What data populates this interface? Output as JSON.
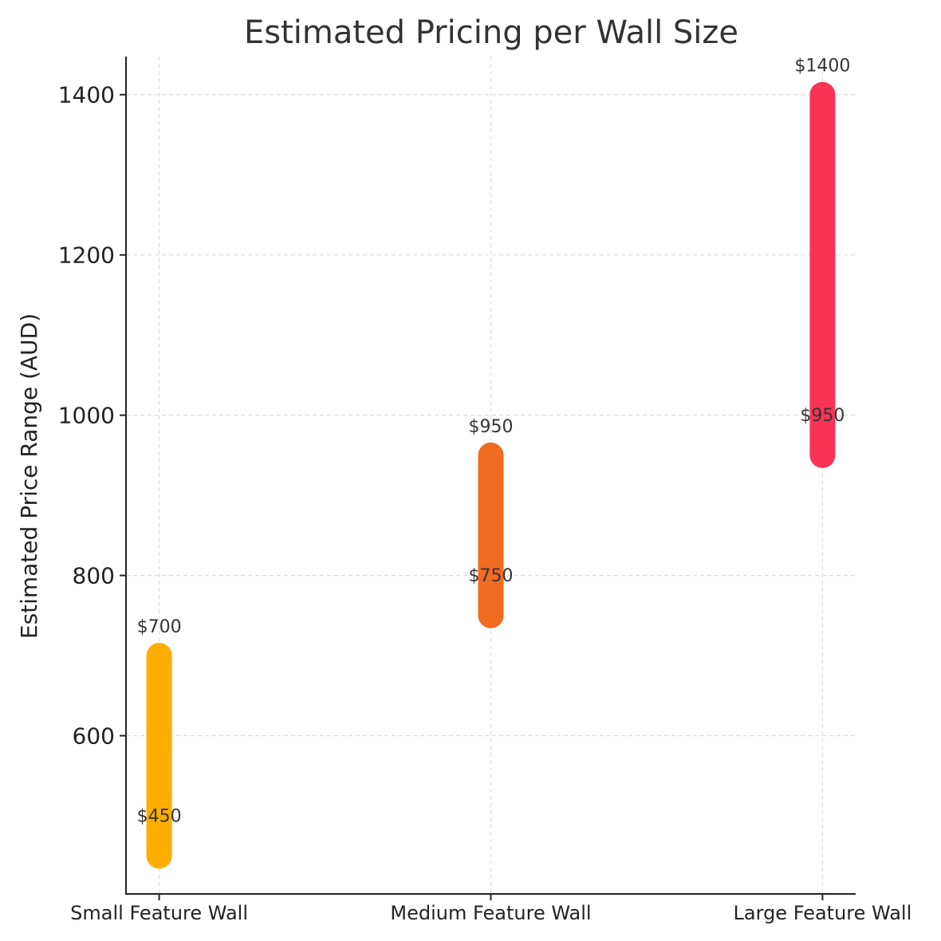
{
  "chart_data": {
    "type": "range-bar",
    "title": "Estimated Pricing per Wall Size",
    "xlabel": "",
    "ylabel": "Estimated Price Range (AUD)",
    "categories": [
      "Small Feature Wall",
      "Medium Feature Wall",
      "Large Feature Wall"
    ],
    "series": [
      {
        "name": "Small Feature Wall",
        "low": 450,
        "high": 700,
        "low_label": "$450",
        "high_label": "$700",
        "color": "#FFAE00"
      },
      {
        "name": "Medium Feature Wall",
        "low": 750,
        "high": 950,
        "low_label": "$750",
        "high_label": "$950",
        "color": "#F26B21"
      },
      {
        "name": "Large Feature Wall",
        "low": 950,
        "high": 1400,
        "low_label": "$950",
        "high_label": "$1400",
        "color": "#F73455"
      }
    ],
    "ylim": [
      402.5,
      1447.5
    ],
    "yticks": [
      600,
      800,
      1000,
      1200,
      1400
    ],
    "grid": true
  }
}
